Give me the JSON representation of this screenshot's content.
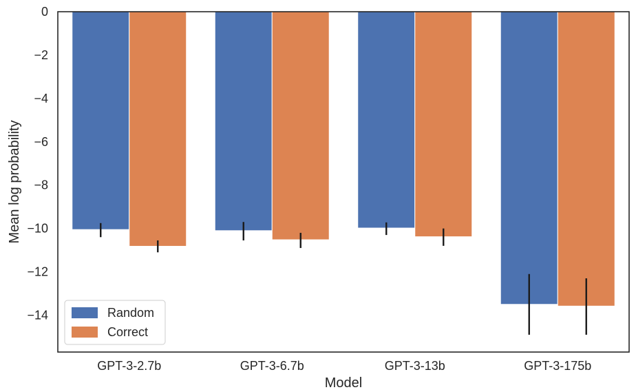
{
  "chart_data": {
    "type": "bar",
    "title": "",
    "xlabel": "Model",
    "ylabel": "Mean log probability",
    "categories": [
      "GPT-3-2.7b",
      "GPT-3-6.7b",
      "GPT-3-13b",
      "GPT-3-175b"
    ],
    "series": [
      {
        "name": "Random",
        "color": "#4c72b0",
        "values": [
          -10.05,
          -10.1,
          -9.98,
          -13.5
        ],
        "error_low": [
          -10.4,
          -10.55,
          -10.3,
          -14.9
        ],
        "error_high": [
          -9.75,
          -9.7,
          -9.72,
          -12.1
        ]
      },
      {
        "name": "Correct",
        "color": "#dd8452",
        "values": [
          -10.82,
          -10.52,
          -10.38,
          -13.58
        ],
        "error_low": [
          -11.1,
          -10.9,
          -10.8,
          -14.9
        ],
        "error_high": [
          -10.55,
          -10.2,
          -10.0,
          -12.3
        ]
      }
    ],
    "ylim": [
      -15.7,
      0
    ],
    "yticks": [
      0,
      -2,
      -4,
      -6,
      -8,
      -10,
      -12,
      -14
    ],
    "ytick_labels": [
      "0",
      "−2",
      "−4",
      "−6",
      "−8",
      "−10",
      "−12",
      "−14"
    ],
    "grid": false,
    "legend_position": "lower-left"
  }
}
